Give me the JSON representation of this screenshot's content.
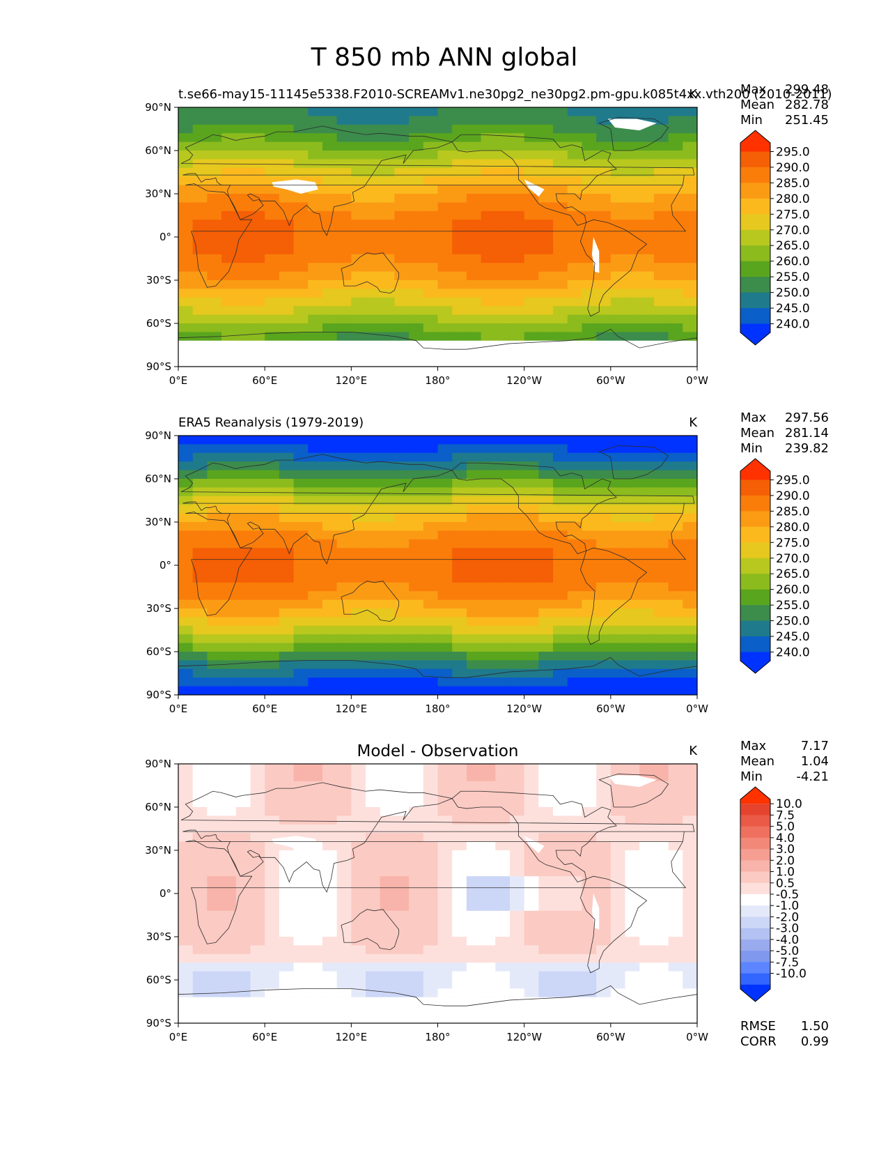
{
  "figure": {
    "title": "T 850 mb ANN global",
    "x_ticks": [
      "0°E",
      "60°E",
      "120°E",
      "180°",
      "120°W",
      "60°W",
      "0°W"
    ],
    "y_ticks": [
      "90°N",
      "60°N",
      "30°N",
      "0°",
      "30°S",
      "60°S",
      "90°S"
    ]
  },
  "colors": {
    "seq": [
      "#0033ff",
      "#0a5fc8",
      "#1f7a8c",
      "#3c8c4c",
      "#5aa51e",
      "#8cbb1e",
      "#b9c81e",
      "#e6c81e",
      "#fbb91e",
      "#fb9b14",
      "#fa7d0a",
      "#f55f05",
      "#ff3200"
    ],
    "diff": [
      "#0033ff",
      "#3366ff",
      "#5c85ff",
      "#8099ee",
      "#99aaee",
      "#b3c2f2",
      "#ccd6f7",
      "#e4e9fa",
      "#ffffff",
      "#fde0dc",
      "#fbcac3",
      "#f8b4aa",
      "#f59e91",
      "#f28878",
      "#ef705f",
      "#ea5a46",
      "#e5432d",
      "#ff3200"
    ],
    "land": "#2b2b2b"
  },
  "chart_data": [
    {
      "type": "heatmap",
      "panel": "model",
      "title_left": "t.se66-may15-11145e5338.F2010-SCREAMv1.ne30pg2_ne30pg2.pm-gpu.k085t4xx.vth200 (2010-2011)",
      "title_center": "",
      "units": "K",
      "stats": [
        {
          "label": "Max",
          "value": "299.48"
        },
        {
          "label": "Mean",
          "value": "282.78"
        },
        {
          "label": "Min",
          "value": "251.45"
        }
      ],
      "colorbar_ticks": [
        "295.0",
        "290.0",
        "285.0",
        "280.0",
        "275.0",
        "270.0",
        "265.0",
        "260.0",
        "255.0",
        "250.0",
        "245.0",
        "240.0"
      ],
      "xlim": [
        0,
        360
      ],
      "ylim": [
        -90,
        90
      ],
      "xlabel": "",
      "ylabel": ""
    },
    {
      "type": "heatmap",
      "panel": "obs",
      "title_left": "ERA5 Reanalysis (1979-2019)",
      "title_center": "",
      "units": "K",
      "stats": [
        {
          "label": "Max",
          "value": "297.56"
        },
        {
          "label": "Mean",
          "value": "281.14"
        },
        {
          "label": "Min",
          "value": "239.82"
        }
      ],
      "colorbar_ticks": [
        "295.0",
        "290.0",
        "285.0",
        "280.0",
        "275.0",
        "270.0",
        "265.0",
        "260.0",
        "255.0",
        "250.0",
        "245.0",
        "240.0"
      ],
      "xlim": [
        0,
        360
      ],
      "ylim": [
        -90,
        90
      ],
      "xlabel": "",
      "ylabel": ""
    },
    {
      "type": "heatmap",
      "panel": "diff",
      "title_left": "",
      "title_center": "Model - Observation",
      "units": "K",
      "stats": [
        {
          "label": "Max",
          "value": "7.17"
        },
        {
          "label": "Mean",
          "value": "1.04"
        },
        {
          "label": "Min",
          "value": "-4.21"
        }
      ],
      "colorbar_ticks": [
        "10.0",
        "7.5",
        "5.0",
        "4.0",
        "3.0",
        "2.0",
        "1.0",
        "0.5",
        "-0.5",
        "-1.0",
        "-2.0",
        "-3.0",
        "-4.0",
        "-5.0",
        "-7.5",
        "-10.0"
      ],
      "metrics": [
        {
          "label": "RMSE",
          "value": "1.50"
        },
        {
          "label": "CORR",
          "value": "0.99"
        }
      ],
      "xlim": [
        0,
        360
      ],
      "ylim": [
        -90,
        90
      ],
      "xlabel": "",
      "ylabel": ""
    }
  ]
}
